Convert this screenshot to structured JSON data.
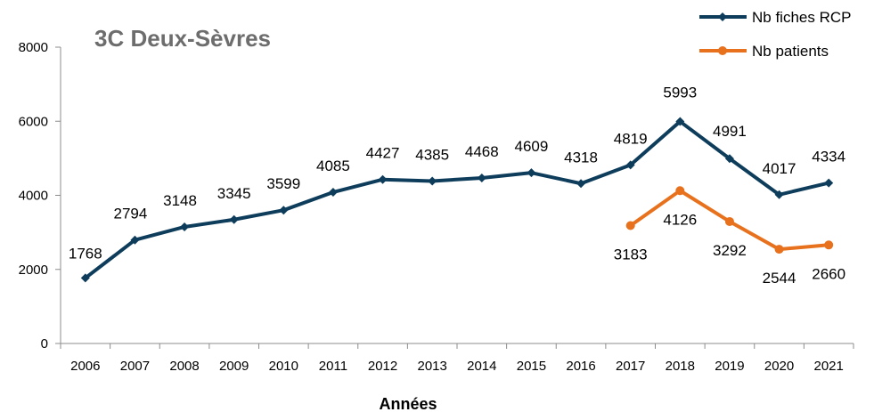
{
  "chart_data": {
    "type": "line",
    "title": "3C Deux-Sèvres",
    "xlabel": "Années",
    "ylabel": "",
    "ylim": [
      0,
      8000
    ],
    "yticks": [
      0,
      2000,
      4000,
      6000,
      8000
    ],
    "x": [
      "2006",
      "2007",
      "2008",
      "2009",
      "2010",
      "2011",
      "2012",
      "2013",
      "2014",
      "2015",
      "2016",
      "2017",
      "2018",
      "2019",
      "2020",
      "2021"
    ],
    "grid": false,
    "legend": "top-right",
    "series": [
      {
        "name": "Nb fiches RCP",
        "color": "#0e3d5c",
        "marker": "diamond",
        "values": [
          1768,
          2794,
          3148,
          3345,
          3599,
          4085,
          4427,
          4385,
          4468,
          4609,
          4318,
          4819,
          5993,
          4991,
          4017,
          4334
        ]
      },
      {
        "name": "Nb patients",
        "color": "#e8711d",
        "marker": "circle",
        "values": [
          null,
          null,
          null,
          null,
          null,
          null,
          null,
          null,
          null,
          null,
          null,
          3183,
          4126,
          3292,
          2544,
          2660
        ]
      }
    ]
  }
}
